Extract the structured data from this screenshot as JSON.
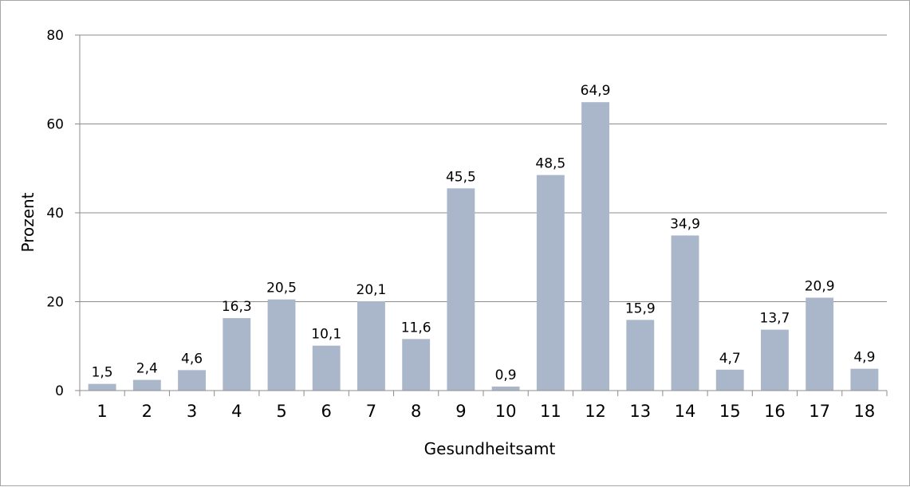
{
  "chart_data": {
    "type": "bar",
    "title": "",
    "xlabel": "Gesundheitsamt",
    "ylabel": "Prozent",
    "ylim": [
      0,
      80
    ],
    "yticks": [
      0,
      20,
      40,
      60,
      80
    ],
    "grid": true,
    "legend": "none",
    "categories": [
      "1",
      "2",
      "3",
      "4",
      "5",
      "6",
      "7",
      "8",
      "9",
      "10",
      "11",
      "12",
      "13",
      "14",
      "15",
      "16",
      "17",
      "18"
    ],
    "values": [
      1.5,
      2.4,
      4.6,
      16.3,
      20.5,
      10.1,
      20.1,
      11.6,
      45.5,
      0.9,
      48.5,
      64.9,
      15.9,
      34.9,
      4.7,
      13.7,
      20.9,
      4.9
    ],
    "data_labels": [
      "1,5",
      "2,4",
      "4,6",
      "16,3",
      "20,5",
      "10,1",
      "20,1",
      "11,6",
      "45,5",
      "0,9",
      "48,5",
      "64,9",
      "15,9",
      "34,9",
      "4,7",
      "13,7",
      "20,9",
      "4,9"
    ],
    "colors": {
      "bar": "#aab7ca",
      "grid": "#8c8c8c",
      "axis": "#8c8c8c"
    }
  }
}
